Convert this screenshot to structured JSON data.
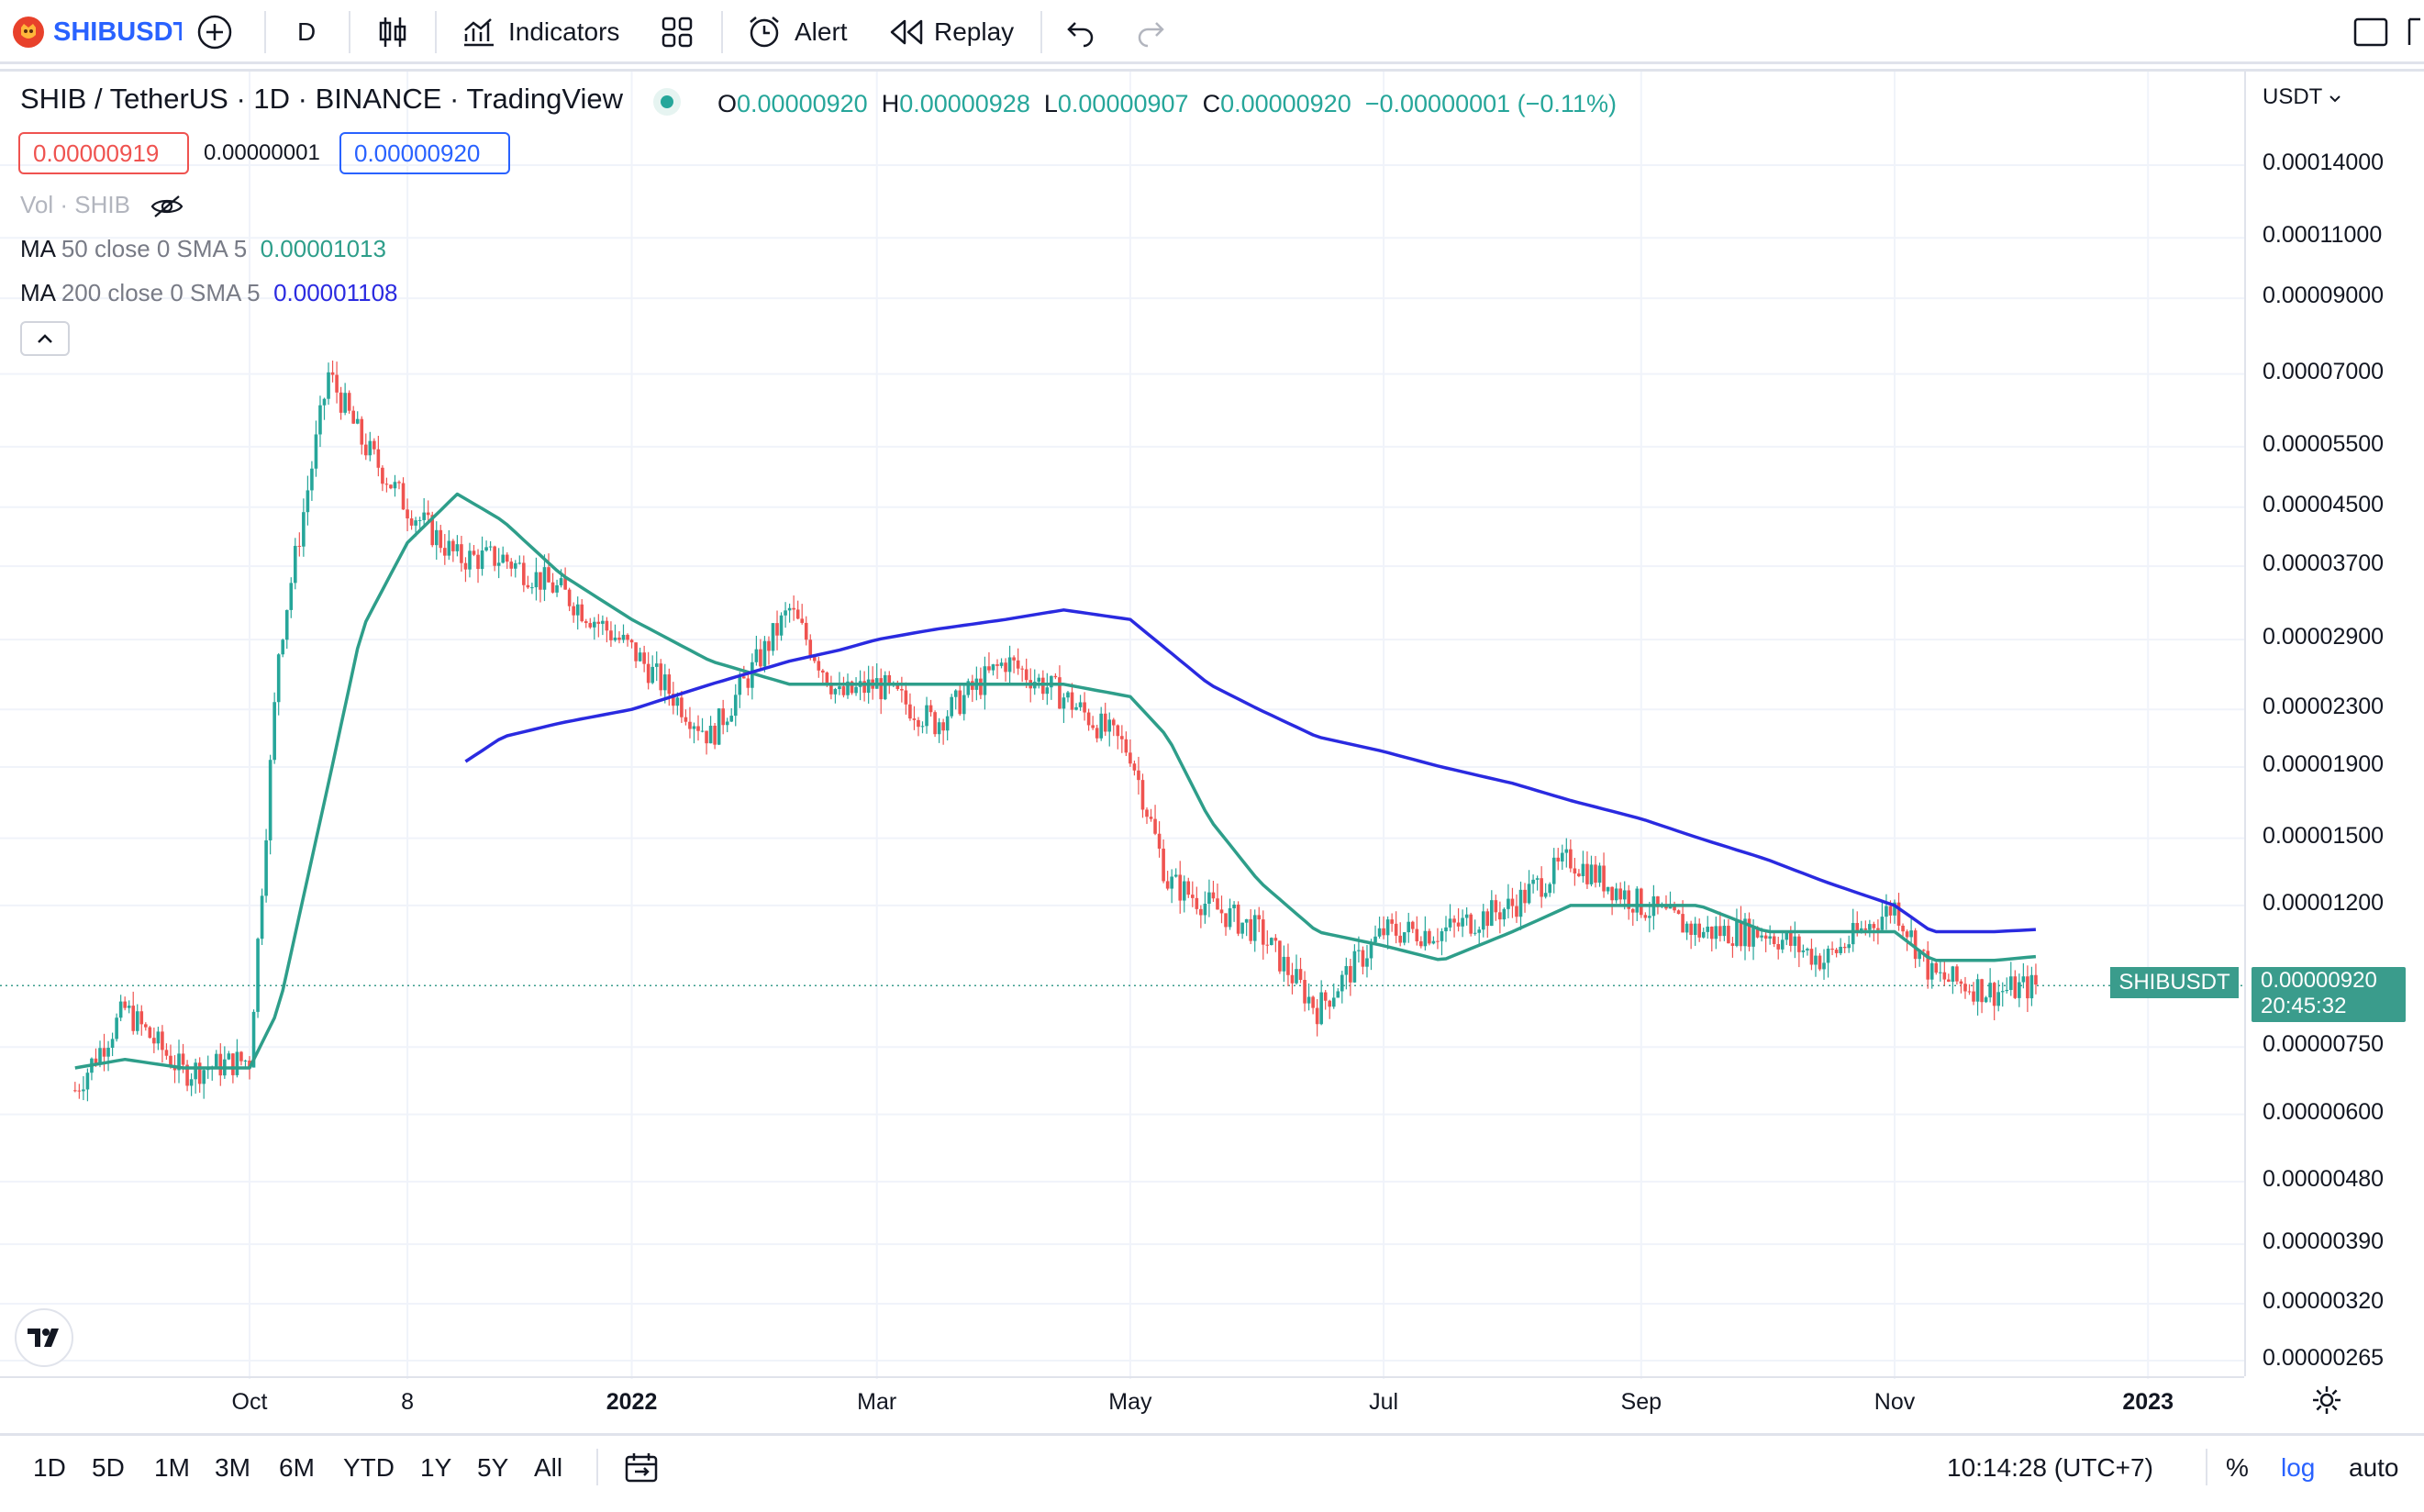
{
  "toolbar": {
    "symbol": "SHIBUSDT",
    "interval": "D",
    "indicators_label": "Indicators",
    "alert_label": "Alert",
    "replay_label": "Replay"
  },
  "legend": {
    "title": "SHIB / TetherUS · 1D · BINANCE · TradingView",
    "ohlc": {
      "o_label": "O",
      "o": "0.00000920",
      "h_label": "H",
      "h": "0.00000928",
      "l_label": "L",
      "l": "0.00000907",
      "c_label": "C",
      "c": "0.00000920",
      "change": "−0.00000001 (−0.11%)"
    },
    "sell_price": "0.00000919",
    "spread": "0.00000001",
    "buy_price": "0.00000920",
    "volume": "Vol · SHIB",
    "ma50": {
      "name": "MA",
      "params": "50 close 0 SMA 5",
      "value": "0.00001013"
    },
    "ma200": {
      "name": "MA",
      "params": "200 close 0 SMA 5",
      "value": "0.00001108"
    }
  },
  "price_axis": {
    "currency": "USDT",
    "labels": [
      "0.00014000",
      "0.00011000",
      "0.00009000",
      "0.00007000",
      "0.00005500",
      "0.00004500",
      "0.00003700",
      "0.00002900",
      "0.00002300",
      "0.00001900",
      "0.00001500",
      "0.00001200",
      "0.00000750",
      "0.00000600",
      "0.00000480",
      "0.00000390",
      "0.00000320",
      "0.00000265"
    ],
    "current_symbol": "SHIBUSDT",
    "current_price": "0.00000920",
    "countdown": "20:45:32",
    "scale": "log"
  },
  "time_axis": {
    "labels": [
      "Oct",
      "8",
      "2022",
      "Mar",
      "May",
      "Jul",
      "Sep",
      "Nov",
      "2023"
    ]
  },
  "bottom": {
    "ranges": [
      "1D",
      "5D",
      "1M",
      "3M",
      "6M",
      "YTD",
      "1Y",
      "5Y",
      "All"
    ],
    "clock": "10:14:28 (UTC+7)",
    "percent": "%",
    "log": "log",
    "auto": "auto"
  },
  "colors": {
    "up": "#26a69a",
    "down": "#ef5350",
    "ma50": "#2e9e8a",
    "ma200": "#2a2ae0",
    "accent": "#2962ff"
  },
  "chart_data": {
    "type": "line",
    "title": "SHIB / TetherUS · 1D · BINANCE · TradingView",
    "y_scale": "log",
    "x": [
      "2021-08-20",
      "2021-09-01",
      "2021-09-15",
      "2021-10-01",
      "2021-10-08",
      "2021-10-20",
      "2021-10-28",
      "2021-11-08",
      "2021-11-20",
      "2021-12-01",
      "2021-12-15",
      "2022-01-01",
      "2022-01-20",
      "2022-02-08",
      "2022-02-20",
      "2022-03-01",
      "2022-03-15",
      "2022-04-01",
      "2022-04-15",
      "2022-05-01",
      "2022-05-10",
      "2022-05-20",
      "2022-06-01",
      "2022-06-15",
      "2022-07-01",
      "2022-07-15",
      "2022-08-01",
      "2022-08-15",
      "2022-09-01",
      "2022-09-15",
      "2022-10-01",
      "2022-10-15",
      "2022-11-01",
      "2022-11-10",
      "2022-11-25",
      "2022-12-05"
    ],
    "series": [
      {
        "name": "SHIBUSDT",
        "values": [
          6.5e-06,
          8.5e-06,
          6.9e-06,
          7.2e-06,
          2.8e-05,
          7e-05,
          5.6e-05,
          4.5e-05,
          3.8e-05,
          3.8e-05,
          3.4e-05,
          2.8e-05,
          2.1e-05,
          3.2e-05,
          2.4e-05,
          2.5e-05,
          2.2e-05,
          2.7e-05,
          2.4e-05,
          2e-05,
          1.3e-05,
          1.2e-05,
          1.1e-05,
          8.5e-06,
          1.1e-05,
          1.1e-05,
          1.2e-05,
          1.4e-05,
          1.2e-05,
          1.1e-05,
          1.1e-05,
          1e-05,
          1.2e-05,
          9.5e-06,
          9e-06,
          9.2e-06
        ]
      },
      {
        "name": "MA 50 close 0 SMA 5",
        "values": [
          7e-06,
          7.2e-06,
          7e-06,
          7e-06,
          8.5e-06,
          1.8e-05,
          3e-05,
          4e-05,
          4.7e-05,
          4.3e-05,
          3.6e-05,
          3.1e-05,
          2.7e-05,
          2.5e-05,
          2.5e-05,
          2.5e-05,
          2.5e-05,
          2.5e-05,
          2.5e-05,
          2.4e-05,
          2.1e-05,
          1.6e-05,
          1.3e-05,
          1.1e-05,
          1.05e-05,
          1e-05,
          1.1e-05,
          1.2e-05,
          1.2e-05,
          1.2e-05,
          1.1e-05,
          1.1e-05,
          1.1e-05,
          1e-05,
          1e-05,
          1.013e-05
        ]
      },
      {
        "name": "MA 200 close 0 SMA 5",
        "values": [
          null,
          null,
          null,
          null,
          null,
          null,
          null,
          null,
          1.9e-05,
          2.1e-05,
          2.2e-05,
          2.3e-05,
          2.5e-05,
          2.7e-05,
          2.8e-05,
          2.9e-05,
          3e-05,
          3.1e-05,
          3.2e-05,
          3.1e-05,
          2.8e-05,
          2.5e-05,
          2.3e-05,
          2.1e-05,
          2e-05,
          1.9e-05,
          1.8e-05,
          1.7e-05,
          1.6e-05,
          1.5e-05,
          1.4e-05,
          1.3e-05,
          1.2e-05,
          1.1e-05,
          1.1e-05,
          1.108e-05
        ]
      }
    ]
  }
}
